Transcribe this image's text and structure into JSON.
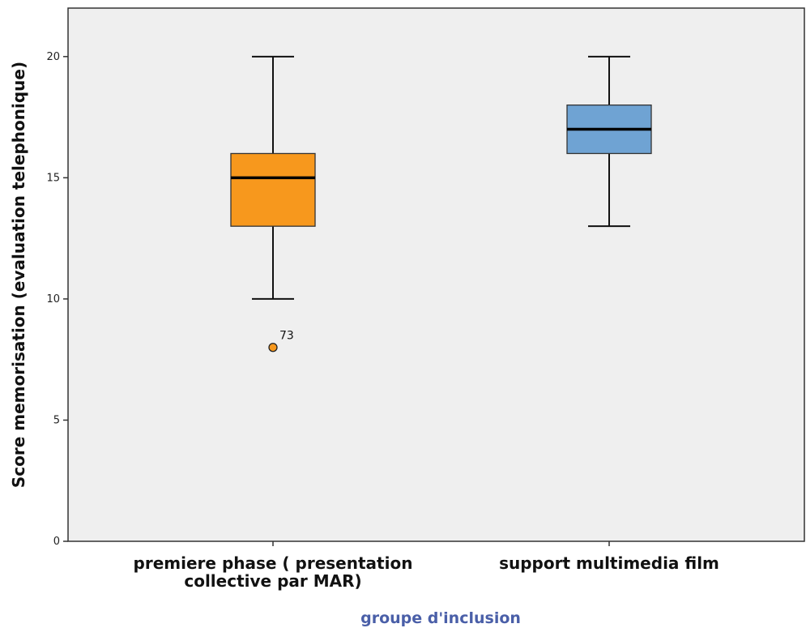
{
  "chart_data": {
    "type": "boxplot",
    "xlabel": "groupe d'inclusion",
    "ylabel": "Score memorisation (evaluation telephonique)",
    "ylim": [
      0,
      22
    ],
    "yticks": [
      0,
      5,
      10,
      15,
      20
    ],
    "grid": false,
    "categories": [
      [
        "premiere phase ( presentation",
        "collective par MAR)"
      ],
      [
        "support multimedia film"
      ]
    ],
    "boxes": [
      {
        "min": 10,
        "q1": 13,
        "median": 15,
        "q3": 16,
        "max": 20,
        "color": "#f7981d",
        "outliers": [
          {
            "value": 8,
            "label": "73"
          }
        ]
      },
      {
        "min": 13,
        "q1": 16,
        "median": 17,
        "q3": 18,
        "max": 20,
        "color": "#6fa3d3",
        "outliers": []
      }
    ]
  },
  "colors": {
    "plot_background": "#efefef",
    "axis": "#333333",
    "xlabel": "#4a5fa8"
  }
}
